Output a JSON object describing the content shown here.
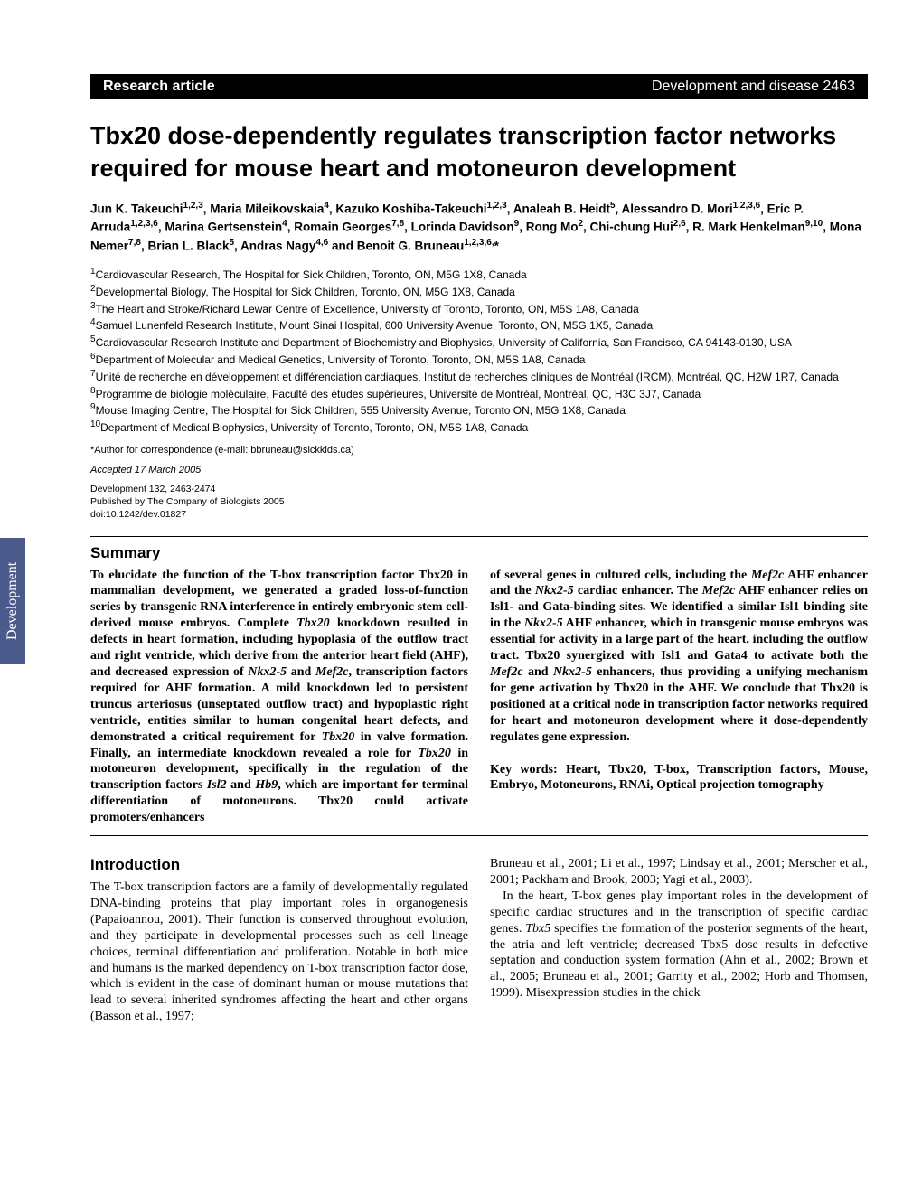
{
  "sideTab": "Development",
  "header": {
    "left": "Research article",
    "right": "Development and disease   2463"
  },
  "title": "Tbx20 dose-dependently regulates transcription factor networks required for mouse heart and motoneuron development",
  "authors": "Jun K. Takeuchi<sup>1,2,3</sup>, Maria Mileikovskaia<sup>4</sup>, Kazuko Koshiba-Takeuchi<sup>1,2,3</sup>, Analeah B. Heidt<sup>5</sup>, Alessandro D. Mori<sup>1,2,3,6</sup>, Eric P. Arruda<sup>1,2,3,6</sup>, Marina Gertsenstein<sup>4</sup>, Romain Georges<sup>7,8</sup>, Lorinda Davidson<sup>9</sup>, Rong Mo<sup>2</sup>, Chi-chung Hui<sup>2,6</sup>, R. Mark Henkelman<sup>9,10</sup>, Mona Nemer<sup>7,8</sup>, Brian L. Black<sup>5</sup>, Andras Nagy<sup>4,6</sup> and Benoit G. Bruneau<sup>1,2,3,6,</sup>*",
  "affiliations": [
    "<sup>1</sup>Cardiovascular Research, The Hospital for Sick Children, Toronto, ON, M5G 1X8, Canada",
    "<sup>2</sup>Developmental Biology, The Hospital for Sick Children, Toronto, ON, M5G 1X8, Canada",
    "<sup>3</sup>The Heart and Stroke/Richard Lewar Centre of Excellence, University of Toronto, Toronto, ON, M5S 1A8, Canada",
    "<sup>4</sup>Samuel Lunenfeld Research Institute, Mount Sinai Hospital, 600 University Avenue, Toronto, ON, M5G 1X5, Canada",
    "<sup>5</sup>Cardiovascular Research Institute and Department of Biochemistry and Biophysics, University of California, San Francisco, CA 94143-0130, USA",
    "<sup>6</sup>Department of Molecular and Medical Genetics, University of Toronto, Toronto, ON, M5S 1A8, Canada",
    "<sup>7</sup>Unité de recherche en développement et différenciation cardiaques, Institut de recherches cliniques de Montréal (IRCM), Montréal, QC, H2W 1R7, Canada",
    "<sup>8</sup>Programme de biologie moléculaire, Faculté des études supérieures, Université de Montréal, Montréal, QC, H3C 3J7, Canada",
    "<sup>9</sup>Mouse Imaging Centre, The Hospital for Sick Children, 555 University Avenue, Toronto ON, M5G 1X8, Canada",
    "<sup>10</sup>Department of Medical Biophysics, University of Toronto, Toronto, ON, M5S 1A8, Canada"
  ],
  "correspondence": "*Author for correspondence (e-mail: bbruneau@sickkids.ca)",
  "accepted": "Accepted 17 March 2005",
  "pubinfo": [
    "Development 132, 2463-2474",
    "Published by The Company of Biologists 2005",
    "doi:10.1242/dev.01827"
  ],
  "summary": {
    "heading": "Summary",
    "col1": "To elucidate the function of the T-box transcription factor Tbx20 in mammalian development, we generated a graded loss-of-function series by transgenic RNA interference in entirely embryonic stem cell-derived mouse embryos. Complete <i>Tbx20</i> knockdown resulted in defects in heart formation, including hypoplasia of the outflow tract and right ventricle, which derive from the anterior heart field (AHF), and decreased expression of <i>Nkx2-5</i> and <i>Mef2c</i>, transcription factors required for AHF formation. A mild knockdown led to persistent truncus arteriosus (unseptated outflow tract) and hypoplastic right ventricle, entities similar to human congenital heart defects, and demonstrated a critical requirement for <i>Tbx20</i> in valve formation. Finally, an intermediate knockdown revealed a role for <i>Tbx20</i> in motoneuron development, specifically in the regulation of the transcription factors <i>Isl2</i> and <i>Hb9</i>, which are important for terminal differentiation of motoneurons. Tbx20 could activate promoters/enhancers",
    "col2": "of several genes in cultured cells, including the <i>Mef2c</i> AHF enhancer and the <i>Nkx2-5</i> cardiac enhancer. The <i>Mef2c</i> AHF enhancer relies on Isl1- and Gata-binding sites. We identified a similar Isl1 binding site in the <i>Nkx2-5</i> AHF enhancer, which in transgenic mouse embryos was essential for activity in a large part of the heart, including the outflow tract. Tbx20 synergized with Isl1 and Gata4 to activate both the <i>Mef2c</i> and <i>Nkx2-5</i> enhancers, thus providing a unifying mechanism for gene activation by Tbx20 in the AHF. We conclude that Tbx20 is positioned at a critical node in transcription factor networks required for heart and motoneuron development where it dose-dependently regulates gene expression.",
    "keywords": "Key words: Heart, Tbx20, T-box, Transcription factors, Mouse, Embryo, Motoneurons, RNAi, Optical projection tomography"
  },
  "intro": {
    "heading": "Introduction",
    "col1": "The T-box transcription factors are a family of developmentally regulated DNA-binding proteins that play important roles in organogenesis (Papaioannou, 2001). Their function is conserved throughout evolution, and they participate in developmental processes such as cell lineage choices, terminal differentiation and proliferation. Notable in both mice and humans is the marked dependency on T-box transcription factor dose, which is evident in the case of dominant human or mouse mutations that lead to several inherited syndromes affecting the heart and other organs (Basson et al., 1997;",
    "col2a": "Bruneau et al., 2001; Li et al., 1997; Lindsay et al., 2001; Merscher et al., 2001; Packham and Brook, 2003; Yagi et al., 2003).",
    "col2b": "In the heart, T-box genes play important roles in the development of specific cardiac structures and in the transcription of specific cardiac genes. <i>Tbx5</i> specifies the formation of the posterior segments of the heart, the atria and left ventricle; decreased Tbx5 dose results in defective septation and conduction system formation (Ahn et al., 2002; Brown et al., 2005; Bruneau et al., 2001; Garrity et al., 2002; Horb and Thomsen, 1999). Misexpression studies in the chick"
  }
}
